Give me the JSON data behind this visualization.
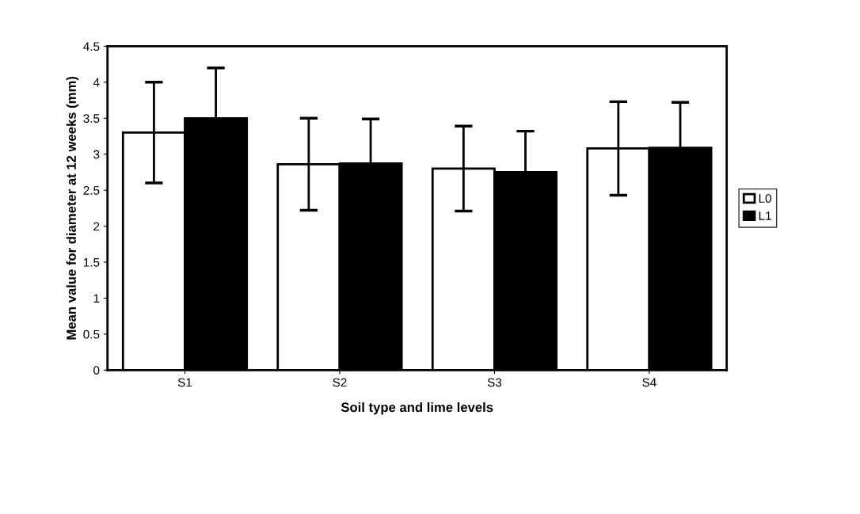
{
  "chart_data": {
    "type": "bar",
    "xlabel": "Soil type and lime levels",
    "ylabel": "Mean value for diameter at 12 weeks (mm)",
    "categories": [
      "S1",
      "S2",
      "S3",
      "S4"
    ],
    "series": [
      {
        "name": "L0",
        "color": "#ffffff",
        "values": [
          3.3,
          2.86,
          2.8,
          3.08
        ],
        "errors": [
          0.7,
          0.64,
          0.59,
          0.65
        ]
      },
      {
        "name": "L1",
        "color": "#000000",
        "values": [
          3.5,
          2.87,
          2.75,
          3.09
        ],
        "errors": [
          0.7,
          0.62,
          0.57,
          0.63
        ]
      }
    ],
    "ylim": [
      0,
      4.5
    ],
    "yticks": [
      0,
      0.5,
      1,
      1.5,
      2,
      2.5,
      3,
      3.5,
      4,
      4.5
    ],
    "grid": false,
    "legend": "right"
  }
}
